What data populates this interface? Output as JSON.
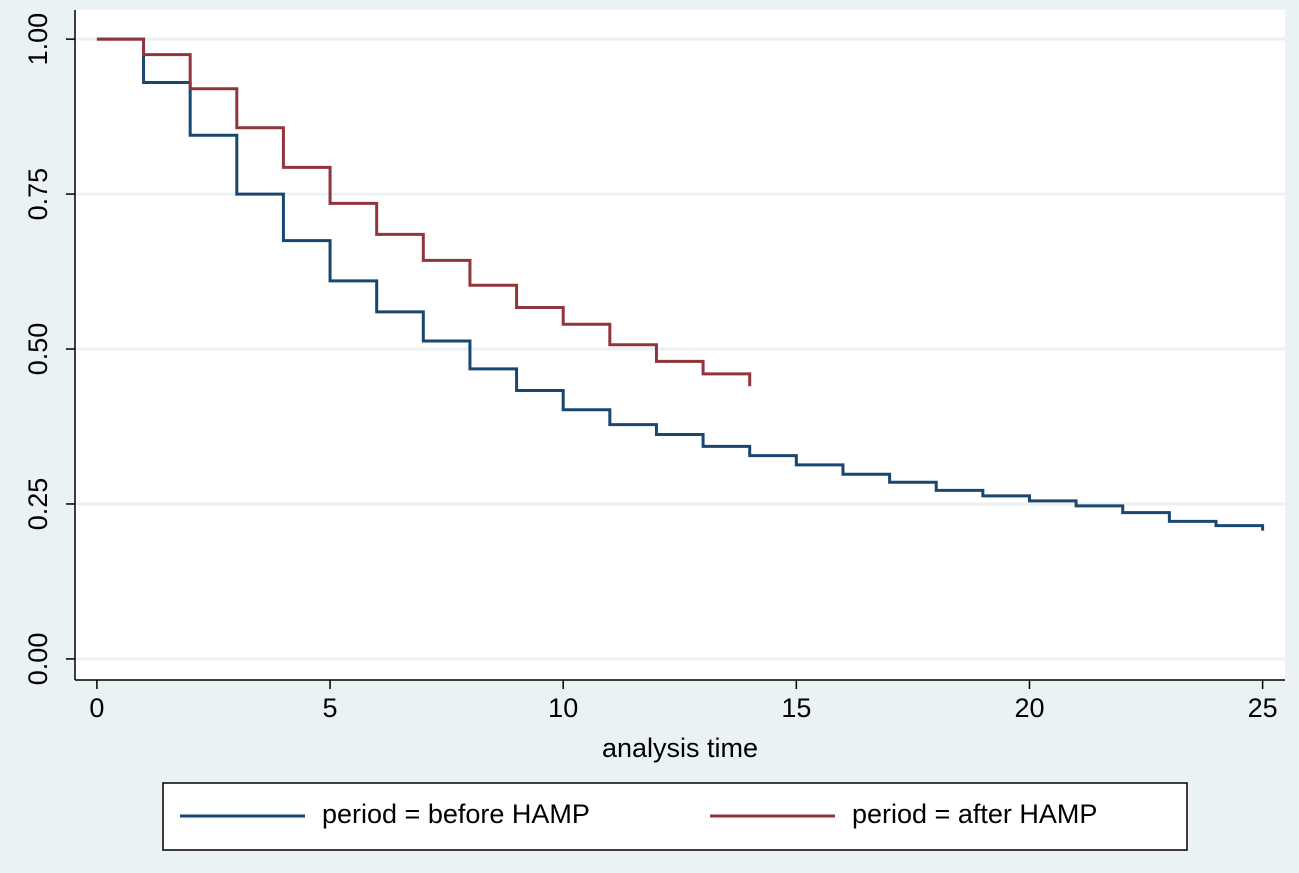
{
  "chart_data": {
    "type": "line",
    "step": true,
    "xlabel": "analysis time",
    "x": [
      0,
      1,
      2,
      3,
      4,
      5,
      6,
      7,
      8,
      9,
      10,
      11,
      12,
      13,
      14,
      15,
      16,
      17,
      18,
      19,
      20,
      21,
      22,
      23,
      24,
      25
    ],
    "series": [
      {
        "name": "period = before HAMP",
        "color": "#1a476f",
        "values": [
          1.0,
          0.93,
          0.845,
          0.75,
          0.675,
          0.61,
          0.56,
          0.513,
          0.468,
          0.433,
          0.402,
          0.378,
          0.362,
          0.343,
          0.328,
          0.313,
          0.298,
          0.285,
          0.272,
          0.263,
          0.255,
          0.247,
          0.236,
          0.222,
          0.215,
          0.207
        ]
      },
      {
        "name": "period = after HAMP",
        "color": "#90353b",
        "values": [
          1.0,
          0.975,
          0.92,
          0.857,
          0.793,
          0.735,
          0.685,
          0.643,
          0.603,
          0.567,
          0.54,
          0.507,
          0.48,
          0.46,
          0.44,
          null,
          null,
          null,
          null,
          null,
          null,
          null,
          null,
          null,
          null,
          null
        ]
      }
    ],
    "xlim": [
      -0.47,
      25.48
    ],
    "xticks": [
      0,
      5,
      10,
      15,
      20,
      25
    ],
    "ylim": [
      -0.034,
      1.047
    ],
    "yticks": [
      {
        "value": 0,
        "label": "0.00"
      },
      {
        "value": 0.25,
        "label": "0.25"
      },
      {
        "value": 0.5,
        "label": "0.50"
      },
      {
        "value": 0.75,
        "label": "0.75"
      },
      {
        "value": 1,
        "label": "1.00"
      }
    ],
    "grid": true,
    "legend": "bottom"
  }
}
